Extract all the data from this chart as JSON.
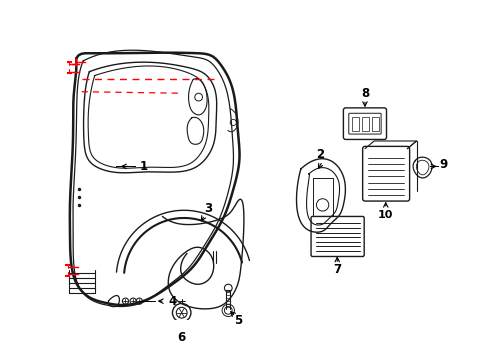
{
  "background_color": "#ffffff",
  "line_color": "#1a1a1a",
  "dashed_color": "#ff0000",
  "figsize": [
    4.89,
    3.6
  ],
  "dpi": 100
}
